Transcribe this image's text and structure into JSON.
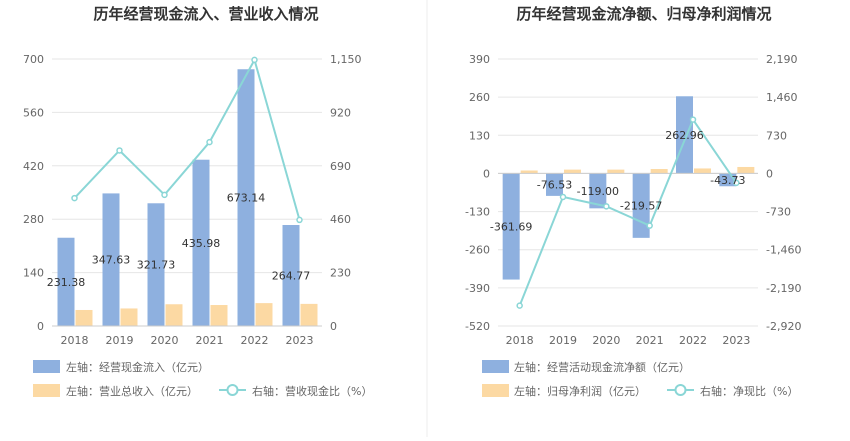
{
  "chart_data": [
    {
      "type": "bar",
      "title": "历年经营现金流入、营业收入情况",
      "categories": [
        "2018",
        "2019",
        "2020",
        "2021",
        "2022",
        "2023"
      ],
      "y_left_ticks": [
        "0",
        "140",
        "280",
        "420",
        "560",
        "700"
      ],
      "y_right_ticks": [
        "0",
        "230",
        "460",
        "690",
        "920",
        "1,150"
      ],
      "ylim_left": [
        0,
        700
      ],
      "ylim_right": [
        0,
        1150
      ],
      "series": [
        {
          "name": "左轴：经营现金流入（亿元）",
          "type": "bar",
          "axis": "left",
          "color": "#8eb0df",
          "values": [
            231.38,
            347.63,
            321.73,
            435.98,
            673.14,
            264.77
          ],
          "labels": [
            "231.38",
            "347.63",
            "321.73",
            "435.98",
            "673.14",
            "264.77"
          ]
        },
        {
          "name": "左轴：营业总收入（亿元）",
          "type": "bar",
          "axis": "left",
          "color": "#fcd9a3",
          "values": [
            42,
            46,
            57,
            55,
            60,
            58
          ]
        },
        {
          "name": "右轴：营收现金比（%）",
          "type": "line",
          "axis": "right",
          "color": "#8ad6d6",
          "values": [
            551,
            756,
            565,
            792,
            1146,
            457
          ]
        }
      ]
    },
    {
      "type": "bar",
      "title": "历年经营现金流净额、归母净利润情况",
      "categories": [
        "2018",
        "2019",
        "2020",
        "2021",
        "2022",
        "2023"
      ],
      "y_left_ticks": [
        "-520",
        "-390",
        "-260",
        "-130",
        "0",
        "130",
        "260",
        "390"
      ],
      "y_right_ticks": [
        "-2,920",
        "-2,190",
        "-1,460",
        "-730",
        "0",
        "730",
        "1,460",
        "2,190"
      ],
      "ylim_left": [
        -520,
        390
      ],
      "ylim_right": [
        -2920,
        2190
      ],
      "series": [
        {
          "name": "左轴：经营活动现金流净额（亿元）",
          "type": "bar",
          "axis": "left",
          "color": "#8eb0df",
          "values": [
            -361.69,
            -76.53,
            -119.0,
            -219.57,
            262.96,
            -43.73
          ],
          "labels": [
            "-361.69",
            "-76.53",
            "-119.00",
            "-219.57",
            "262.96",
            "-43.73"
          ]
        },
        {
          "name": "左轴：归母净利润（亿元）",
          "type": "bar",
          "axis": "left",
          "color": "#fcd9a3",
          "values": [
            10,
            13,
            13,
            15,
            17,
            22
          ]
        },
        {
          "name": "右轴：净现比（%）",
          "type": "line",
          "axis": "right",
          "color": "#8ad6d6",
          "values": [
            -2530,
            -450,
            -630,
            -1000,
            1030,
            -180
          ]
        }
      ]
    }
  ]
}
